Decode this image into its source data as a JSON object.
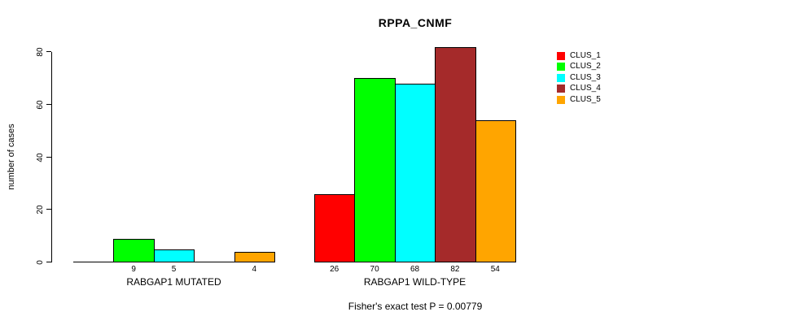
{
  "title": "RPPA_CNMF",
  "footnote": "Fisher's exact test P = 0.00779",
  "chart_data": {
    "type": "bar",
    "title": "RPPA_CNMF",
    "xlabel": "",
    "ylabel": "number of cases",
    "ylim": [
      0,
      80
    ],
    "yticks": [
      0,
      20,
      40,
      60,
      80
    ],
    "grid": false,
    "legend_position": "right",
    "categories": [
      "RABGAP1 MUTATED",
      "RABGAP1 WILD-TYPE"
    ],
    "groups": [
      {
        "label": "RABGAP1 MUTATED",
        "values": [
          0,
          9,
          5,
          0,
          4
        ]
      },
      {
        "label": "RABGAP1 WILD-TYPE",
        "values": [
          26,
          70,
          68,
          82,
          54
        ]
      }
    ],
    "series": [
      {
        "name": "CLUS_1",
        "color": "#ff0000",
        "values": [
          0,
          26
        ]
      },
      {
        "name": "CLUS_2",
        "color": "#00ff00",
        "values": [
          9,
          70
        ]
      },
      {
        "name": "CLUS_3",
        "color": "#00ffff",
        "values": [
          5,
          68
        ]
      },
      {
        "name": "CLUS_4",
        "color": "#a52a2a",
        "values": [
          0,
          82
        ]
      },
      {
        "name": "CLUS_5",
        "color": "#ffa500",
        "values": [
          4,
          54
        ]
      }
    ],
    "annotation": "Fisher's exact test P = 0.00779",
    "bar_value_labels_shown_only_if_nonzero": true
  },
  "legend": {
    "items": [
      {
        "label": "CLUS_1",
        "color": "#ff0000"
      },
      {
        "label": "CLUS_2",
        "color": "#00ff00"
      },
      {
        "label": "CLUS_3",
        "color": "#00ffff"
      },
      {
        "label": "CLUS_4",
        "color": "#a52a2a"
      },
      {
        "label": "CLUS_5",
        "color": "#ffa500"
      }
    ]
  }
}
